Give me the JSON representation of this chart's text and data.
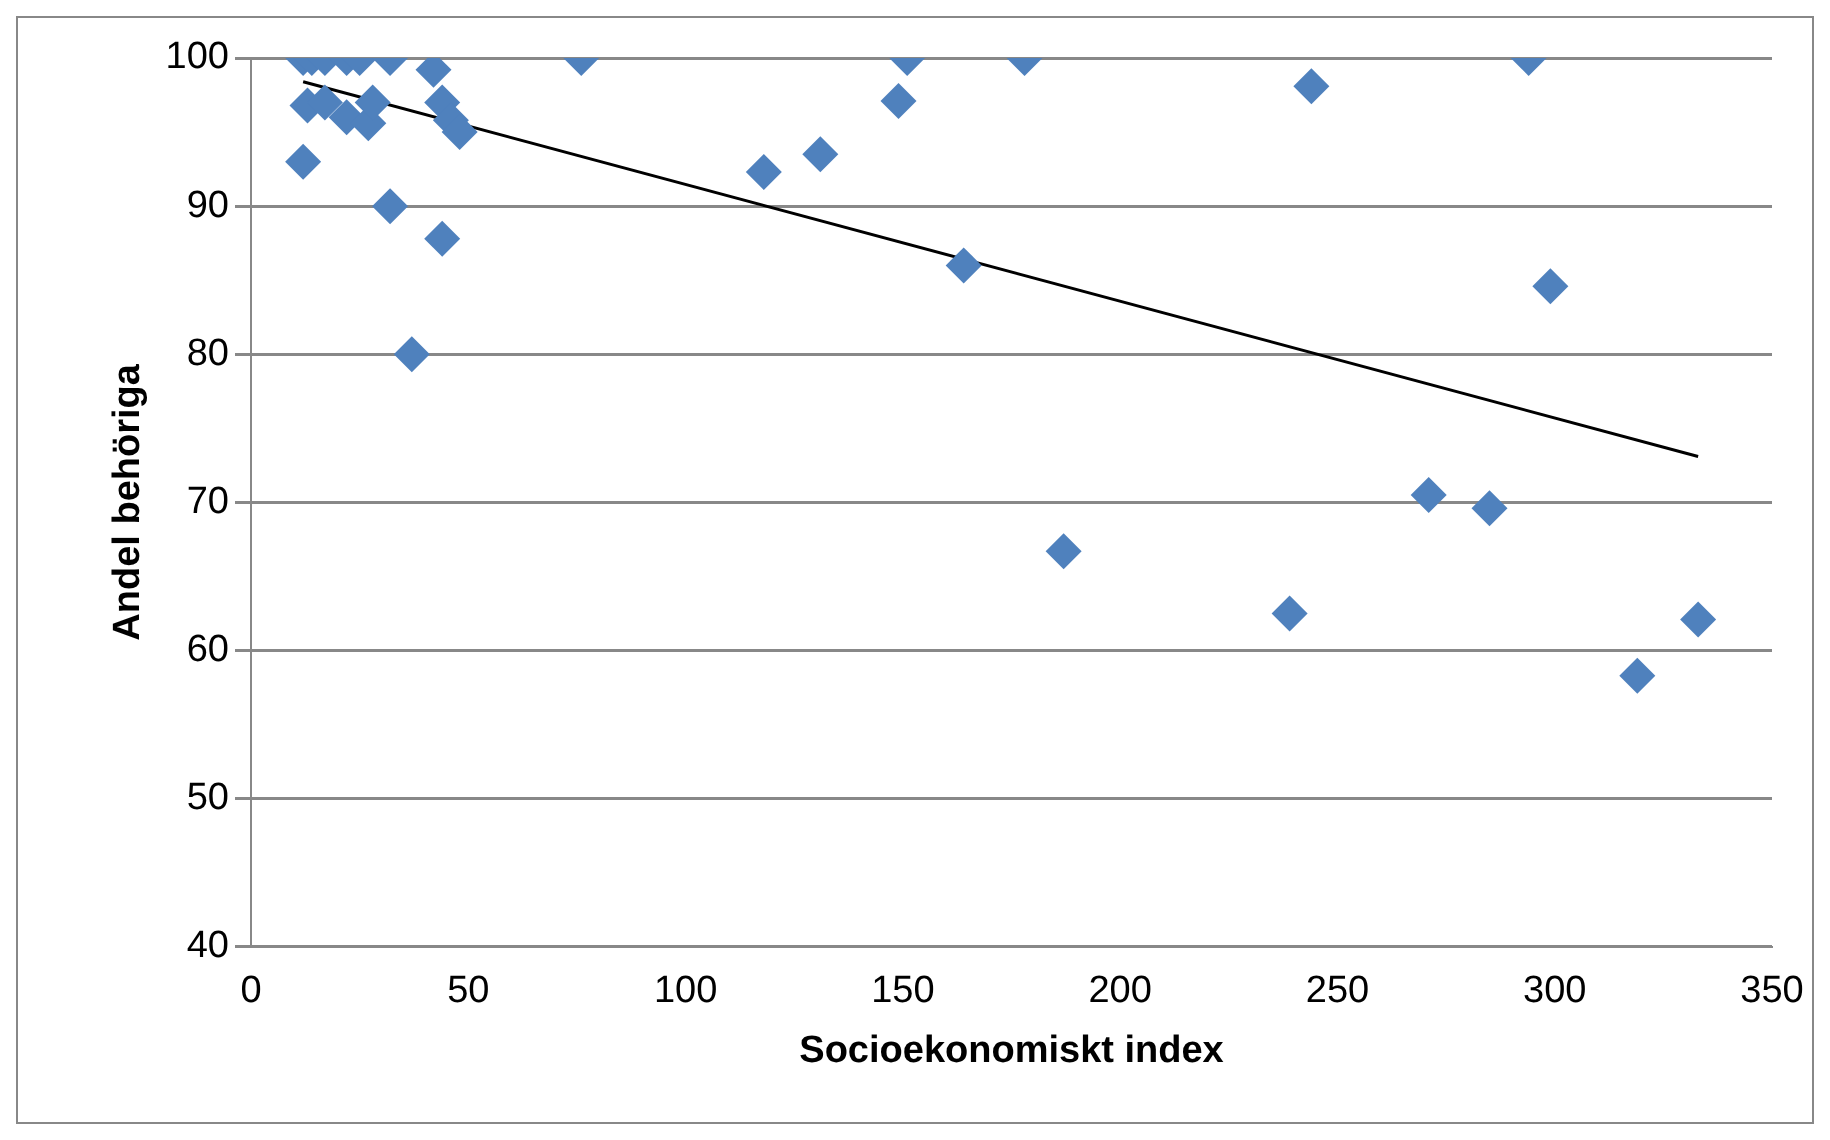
{
  "chart_data": {
    "type": "scatter",
    "xlabel": "Socioekonomiskt index",
    "ylabel": "Andel behöriga",
    "xlim": [
      0,
      350
    ],
    "xticks": [
      0,
      50,
      100,
      150,
      200,
      250,
      300,
      350
    ],
    "ylim": [
      40,
      100
    ],
    "yticks": [
      40,
      50,
      60,
      70,
      80,
      90,
      100
    ],
    "grid": "y",
    "legend": false,
    "marker": "diamond",
    "series": [
      {
        "color": "#4f81bd",
        "x": [
          12,
          14,
          17,
          22,
          25,
          32,
          42,
          13,
          17,
          19,
          22,
          27,
          28,
          12,
          32,
          44,
          46,
          48,
          44,
          37,
          76,
          118,
          131,
          149,
          151,
          164,
          178,
          187,
          239,
          244,
          271,
          285,
          294,
          299,
          319,
          333
        ],
        "values": [
          100,
          100,
          100,
          100,
          100,
          100,
          99.2,
          96.8,
          97,
          null,
          96,
          95.6,
          97,
          93,
          90,
          97,
          95.8,
          95,
          87.8,
          80,
          100,
          92.3,
          93.5,
          97.1,
          100,
          86,
          100,
          66.7,
          62.5,
          98.1,
          70.5,
          69.6,
          100,
          84.6,
          58.3,
          62.1
        ]
      },
      {
        "type": "line",
        "color": "#000000",
        "marker": "none",
        "x": [
          12,
          333
        ],
        "values": [
          98.4,
          73.1
        ]
      }
    ]
  }
}
